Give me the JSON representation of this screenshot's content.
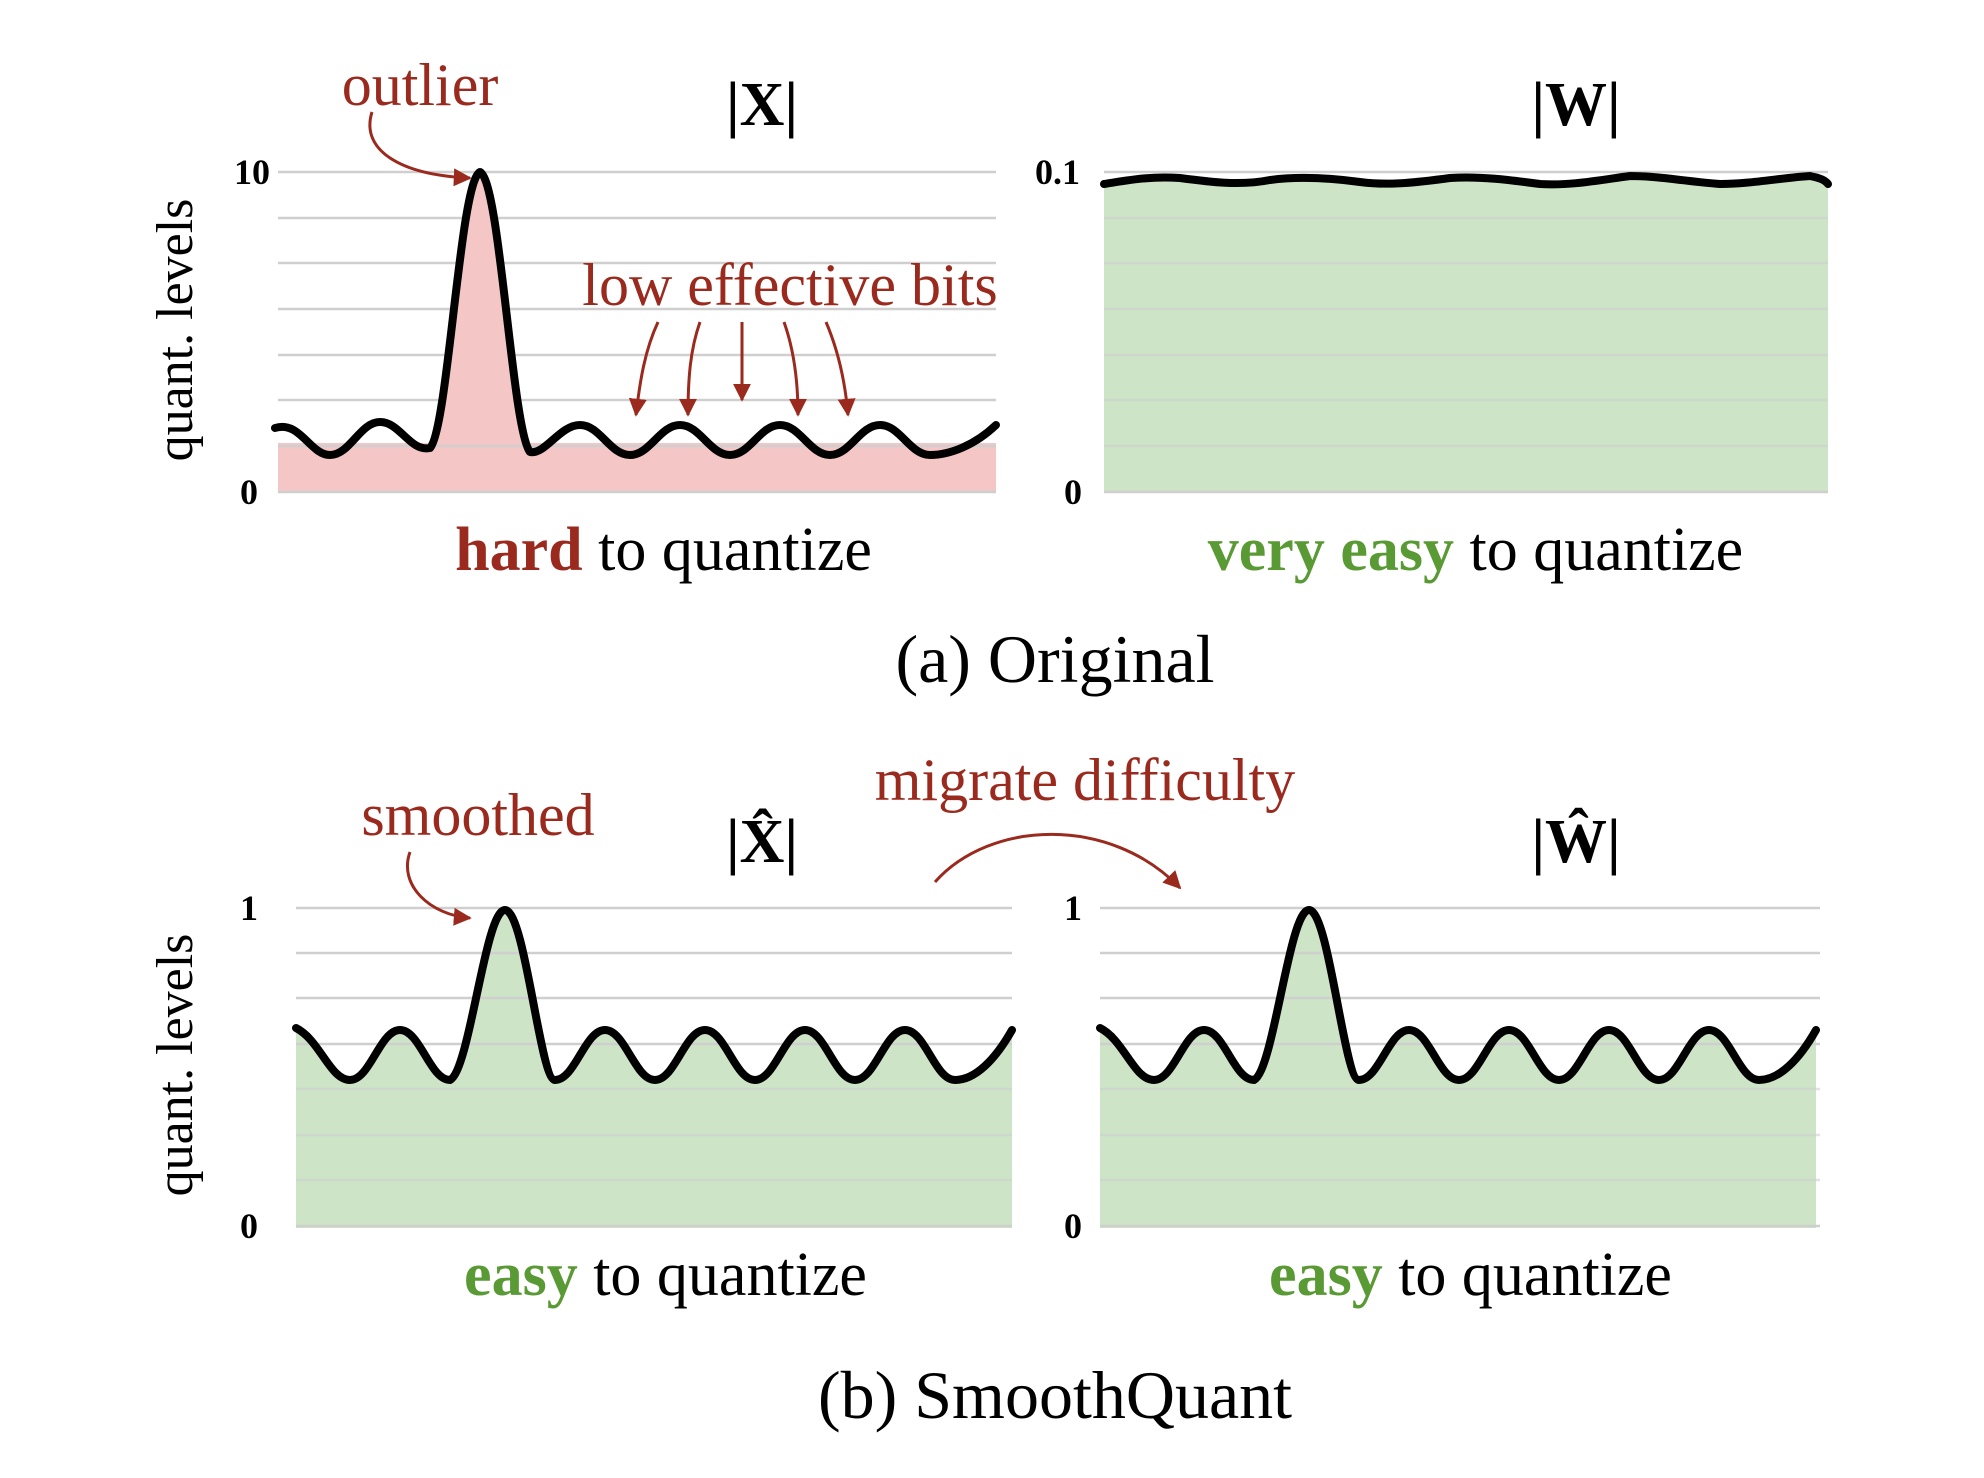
{
  "colors": {
    "red_text": "#9b2a1e",
    "green_text": "#5a9a35",
    "red_fill": "#f5c6c6",
    "green_fill": "#cde4c7",
    "grid": "#cfcfcf",
    "curve": "#000000"
  },
  "axis_label": "quant. levels",
  "panels": {
    "x_orig": {
      "title": "|X|",
      "y_top": "10",
      "y_bottom": "0",
      "fill": "red",
      "verdict_strong": "hard",
      "verdict_rest": " to quantize",
      "verdict_color": "red"
    },
    "w_orig": {
      "title": "|W|",
      "y_top": "0.1",
      "y_bottom": "0",
      "fill": "green",
      "verdict_strong": "very easy",
      "verdict_rest": " to quantize",
      "verdict_color": "green"
    },
    "x_smooth": {
      "title": "|X̂|",
      "y_top": "1",
      "y_bottom": "0",
      "fill": "green",
      "verdict_strong": "easy",
      "verdict_rest": " to quantize",
      "verdict_color": "green"
    },
    "w_smooth": {
      "title": "|Ŵ|",
      "y_top": "1",
      "y_bottom": "0",
      "fill": "green",
      "verdict_strong": "easy",
      "verdict_rest": " to quantize",
      "verdict_color": "green"
    }
  },
  "annotations": {
    "outlier": "outlier",
    "low_effective_bits": "low effective bits",
    "smoothed": "smoothed",
    "migrate_difficulty": "migrate difficulty"
  },
  "captions": {
    "a": "(a) Original",
    "b": "(b) SmoothQuant"
  }
}
